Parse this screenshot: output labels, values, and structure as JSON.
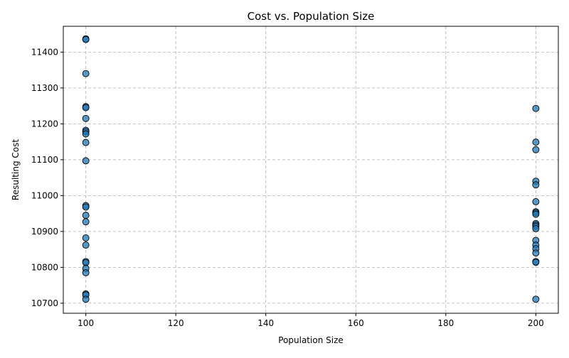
{
  "chart_data": {
    "type": "scatter",
    "title": "Cost vs. Population Size",
    "xlabel": "Population Size",
    "ylabel": "Resulting Cost",
    "xlim": [
      95,
      205
    ],
    "ylim": [
      10672,
      11472
    ],
    "xticks": [
      100,
      120,
      140,
      160,
      180,
      200
    ],
    "yticks": [
      10700,
      10800,
      10900,
      11000,
      11100,
      11200,
      11300,
      11400
    ],
    "grid": true,
    "marker_color": "#1f77b4",
    "marker_edge_color": "#000000",
    "series": [
      {
        "points": [
          [
            100,
            11437
          ],
          [
            100,
            11435
          ],
          [
            100,
            11340
          ],
          [
            100,
            11248
          ],
          [
            100,
            11245
          ],
          [
            100,
            11215
          ],
          [
            100,
            11182
          ],
          [
            100,
            11178
          ],
          [
            100,
            11172
          ],
          [
            100,
            11148
          ],
          [
            100,
            11097
          ],
          [
            100,
            10972
          ],
          [
            100,
            10968
          ],
          [
            100,
            10945
          ],
          [
            100,
            10927
          ],
          [
            100,
            10882
          ],
          [
            100,
            10862
          ],
          [
            100,
            10816
          ],
          [
            100,
            10813
          ],
          [
            100,
            10797
          ],
          [
            100,
            10785
          ],
          [
            100,
            10726
          ],
          [
            100,
            10723
          ],
          [
            100,
            10711
          ],
          [
            200,
            11243
          ],
          [
            200,
            11149
          ],
          [
            200,
            11128
          ],
          [
            200,
            11040
          ],
          [
            200,
            11030
          ],
          [
            200,
            10983
          ],
          [
            200,
            10955
          ],
          [
            200,
            10952
          ],
          [
            200,
            10948
          ],
          [
            200,
            10922
          ],
          [
            200,
            10918
          ],
          [
            200,
            10914
          ],
          [
            200,
            10908
          ],
          [
            200,
            10875
          ],
          [
            200,
            10862
          ],
          [
            200,
            10852
          ],
          [
            200,
            10840
          ],
          [
            200,
            10816
          ],
          [
            200,
            10814
          ],
          [
            200,
            10711
          ]
        ]
      }
    ]
  }
}
